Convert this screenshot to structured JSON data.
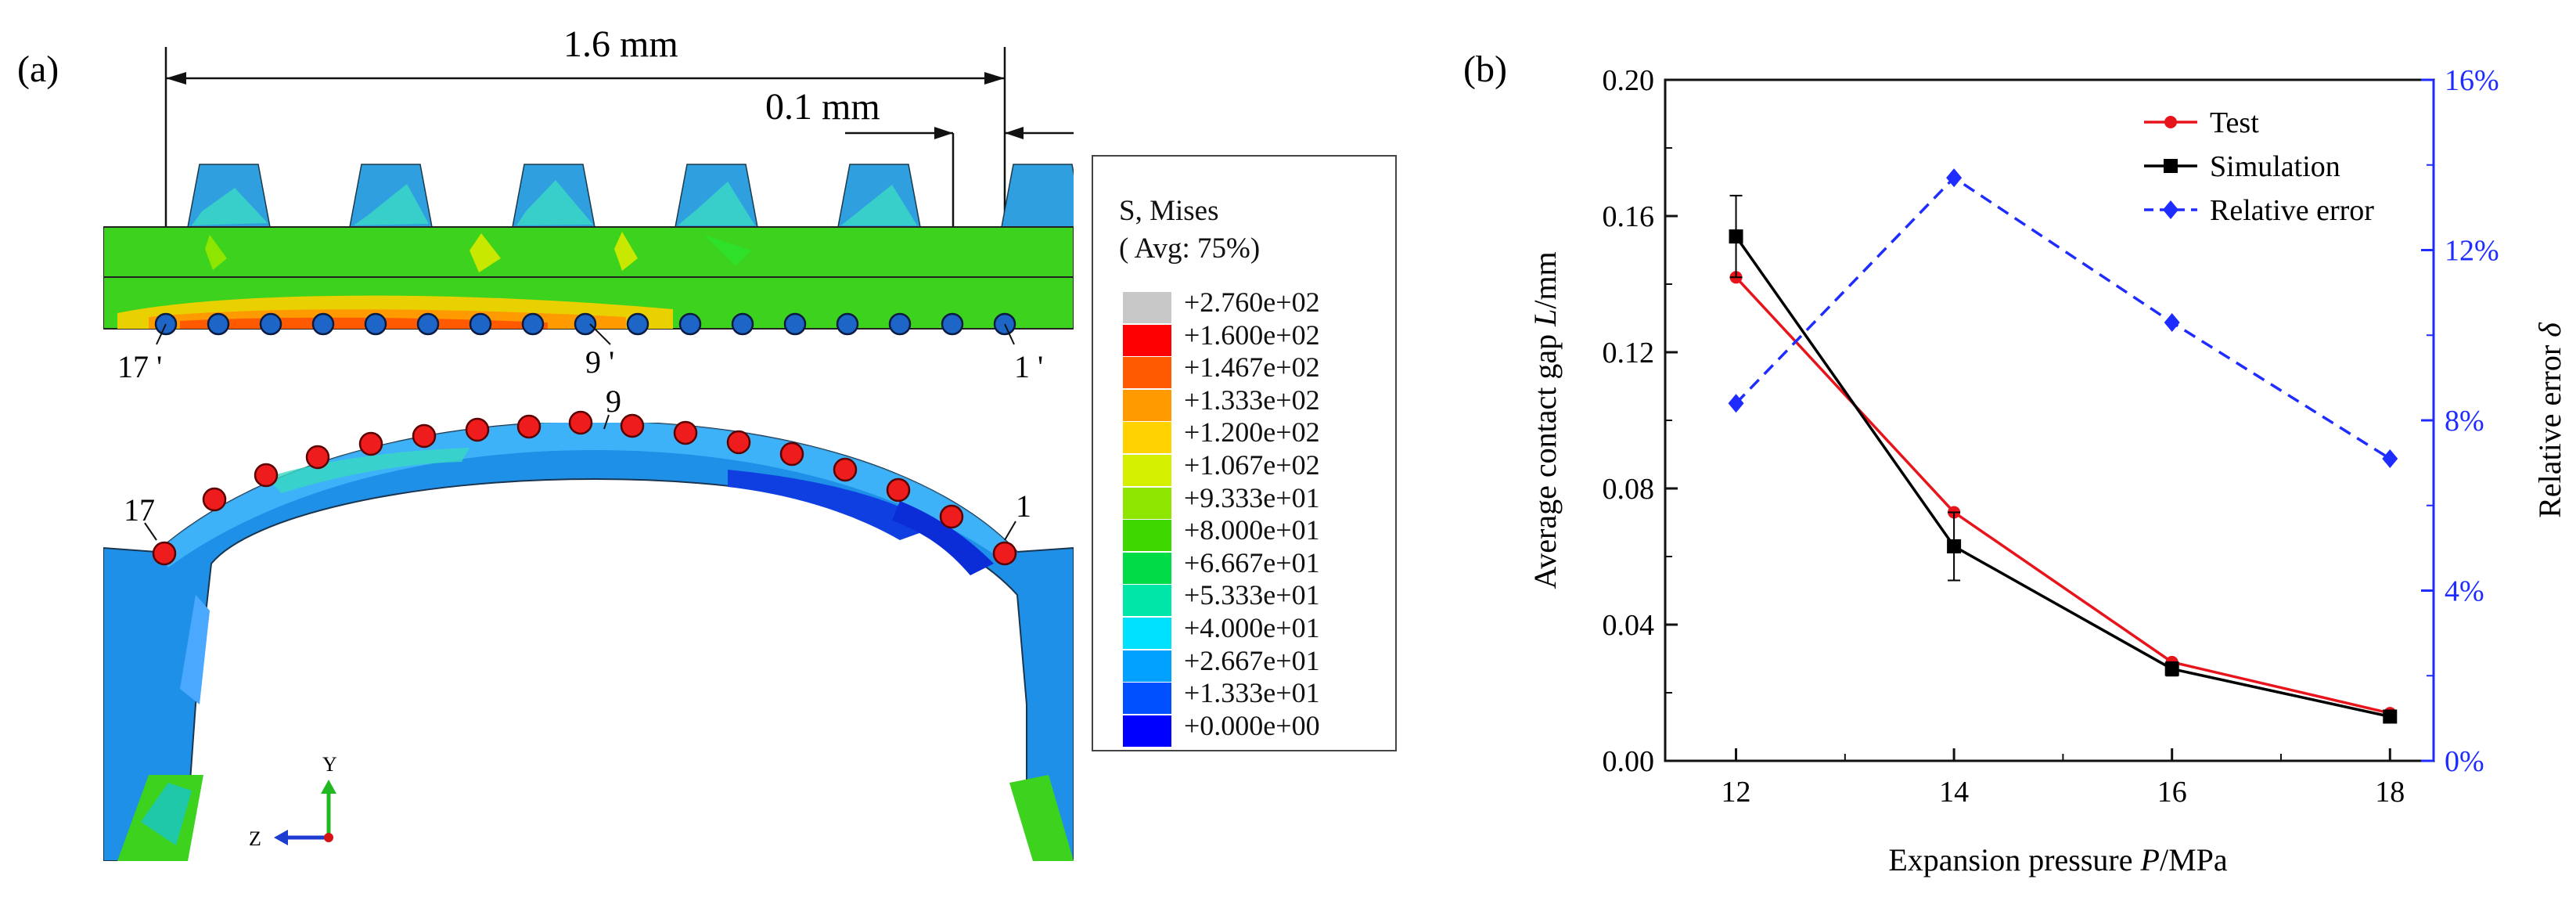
{
  "panel_a": {
    "label": "(a)",
    "dim_total": "1.6 mm",
    "dim_small": "0.1 mm",
    "point_labels": {
      "p17p": "17 '",
      "p9p": "9 '",
      "p1p": "1 '",
      "p17": "17",
      "p9": "9",
      "p1": "1"
    },
    "axis_y": "Y",
    "axis_z": "Z",
    "legend": {
      "title": "S, Mises",
      "subtitle": "( Avg: 75%)",
      "entries": [
        {
          "value": "+2.760e+02",
          "color": "#c8c8c8"
        },
        {
          "value": "+1.600e+02",
          "color": "#ff0000"
        },
        {
          "value": "+1.467e+02",
          "color": "#ff5a00"
        },
        {
          "value": "+1.333e+02",
          "color": "#ff9a00"
        },
        {
          "value": "+1.200e+02",
          "color": "#ffd200"
        },
        {
          "value": "+1.067e+02",
          "color": "#d4f000"
        },
        {
          "value": "+9.333e+01",
          "color": "#8ee600"
        },
        {
          "value": "+8.000e+01",
          "color": "#3ed800"
        },
        {
          "value": "+6.667e+01",
          "color": "#00dc46"
        },
        {
          "value": "+5.333e+01",
          "color": "#00e6a8"
        },
        {
          "value": "+4.000e+01",
          "color": "#00e1ff"
        },
        {
          "value": "+2.667e+01",
          "color": "#00a0ff"
        },
        {
          "value": "+1.333e+01",
          "color": "#0050ff"
        },
        {
          "value": "+0.000e+00",
          "color": "#0000ff"
        }
      ]
    }
  },
  "panel_b": {
    "label": "(b)",
    "chart_data": {
      "type": "line",
      "x": [
        12,
        14,
        16,
        18
      ],
      "series": [
        {
          "name": "Test",
          "axis": "left",
          "color": "#e8141c",
          "marker": "circle",
          "values": [
            0.142,
            0.073,
            0.029,
            0.014
          ]
        },
        {
          "name": "Simulation",
          "axis": "left",
          "color": "#000000",
          "marker": "square",
          "values": [
            0.154,
            0.063,
            0.027,
            0.013
          ],
          "error": [
            0.012,
            0.01,
            0.002,
            0.001
          ]
        },
        {
          "name": "Relative error",
          "axis": "right",
          "color": "#1f2cff",
          "marker": "diamond",
          "dashed": true,
          "values": [
            8.4,
            13.7,
            10.3,
            7.1
          ]
        }
      ],
      "xlabel_prefix": "Expansion pressure ",
      "xlabel_var": "P",
      "xlabel_unit": "/MPa",
      "ylabel_prefix": "Average contact gap  ",
      "ylabel_var": "L",
      "ylabel_unit": "/mm",
      "y2label_prefix": "Relative error  ",
      "y2label_var": "δ",
      "xlim": [
        11.35,
        18.4
      ],
      "ylim": [
        0,
        0.2
      ],
      "y2lim": [
        0,
        16
      ],
      "xticks": [
        "12",
        "14",
        "16",
        "18"
      ],
      "yticks": [
        "0.00",
        "0.04",
        "0.08",
        "0.12",
        "0.16",
        "0.20"
      ],
      "y2ticks": [
        "0%",
        "4%",
        "8%",
        "12%",
        "16%"
      ],
      "legend_position": "top-right"
    }
  }
}
